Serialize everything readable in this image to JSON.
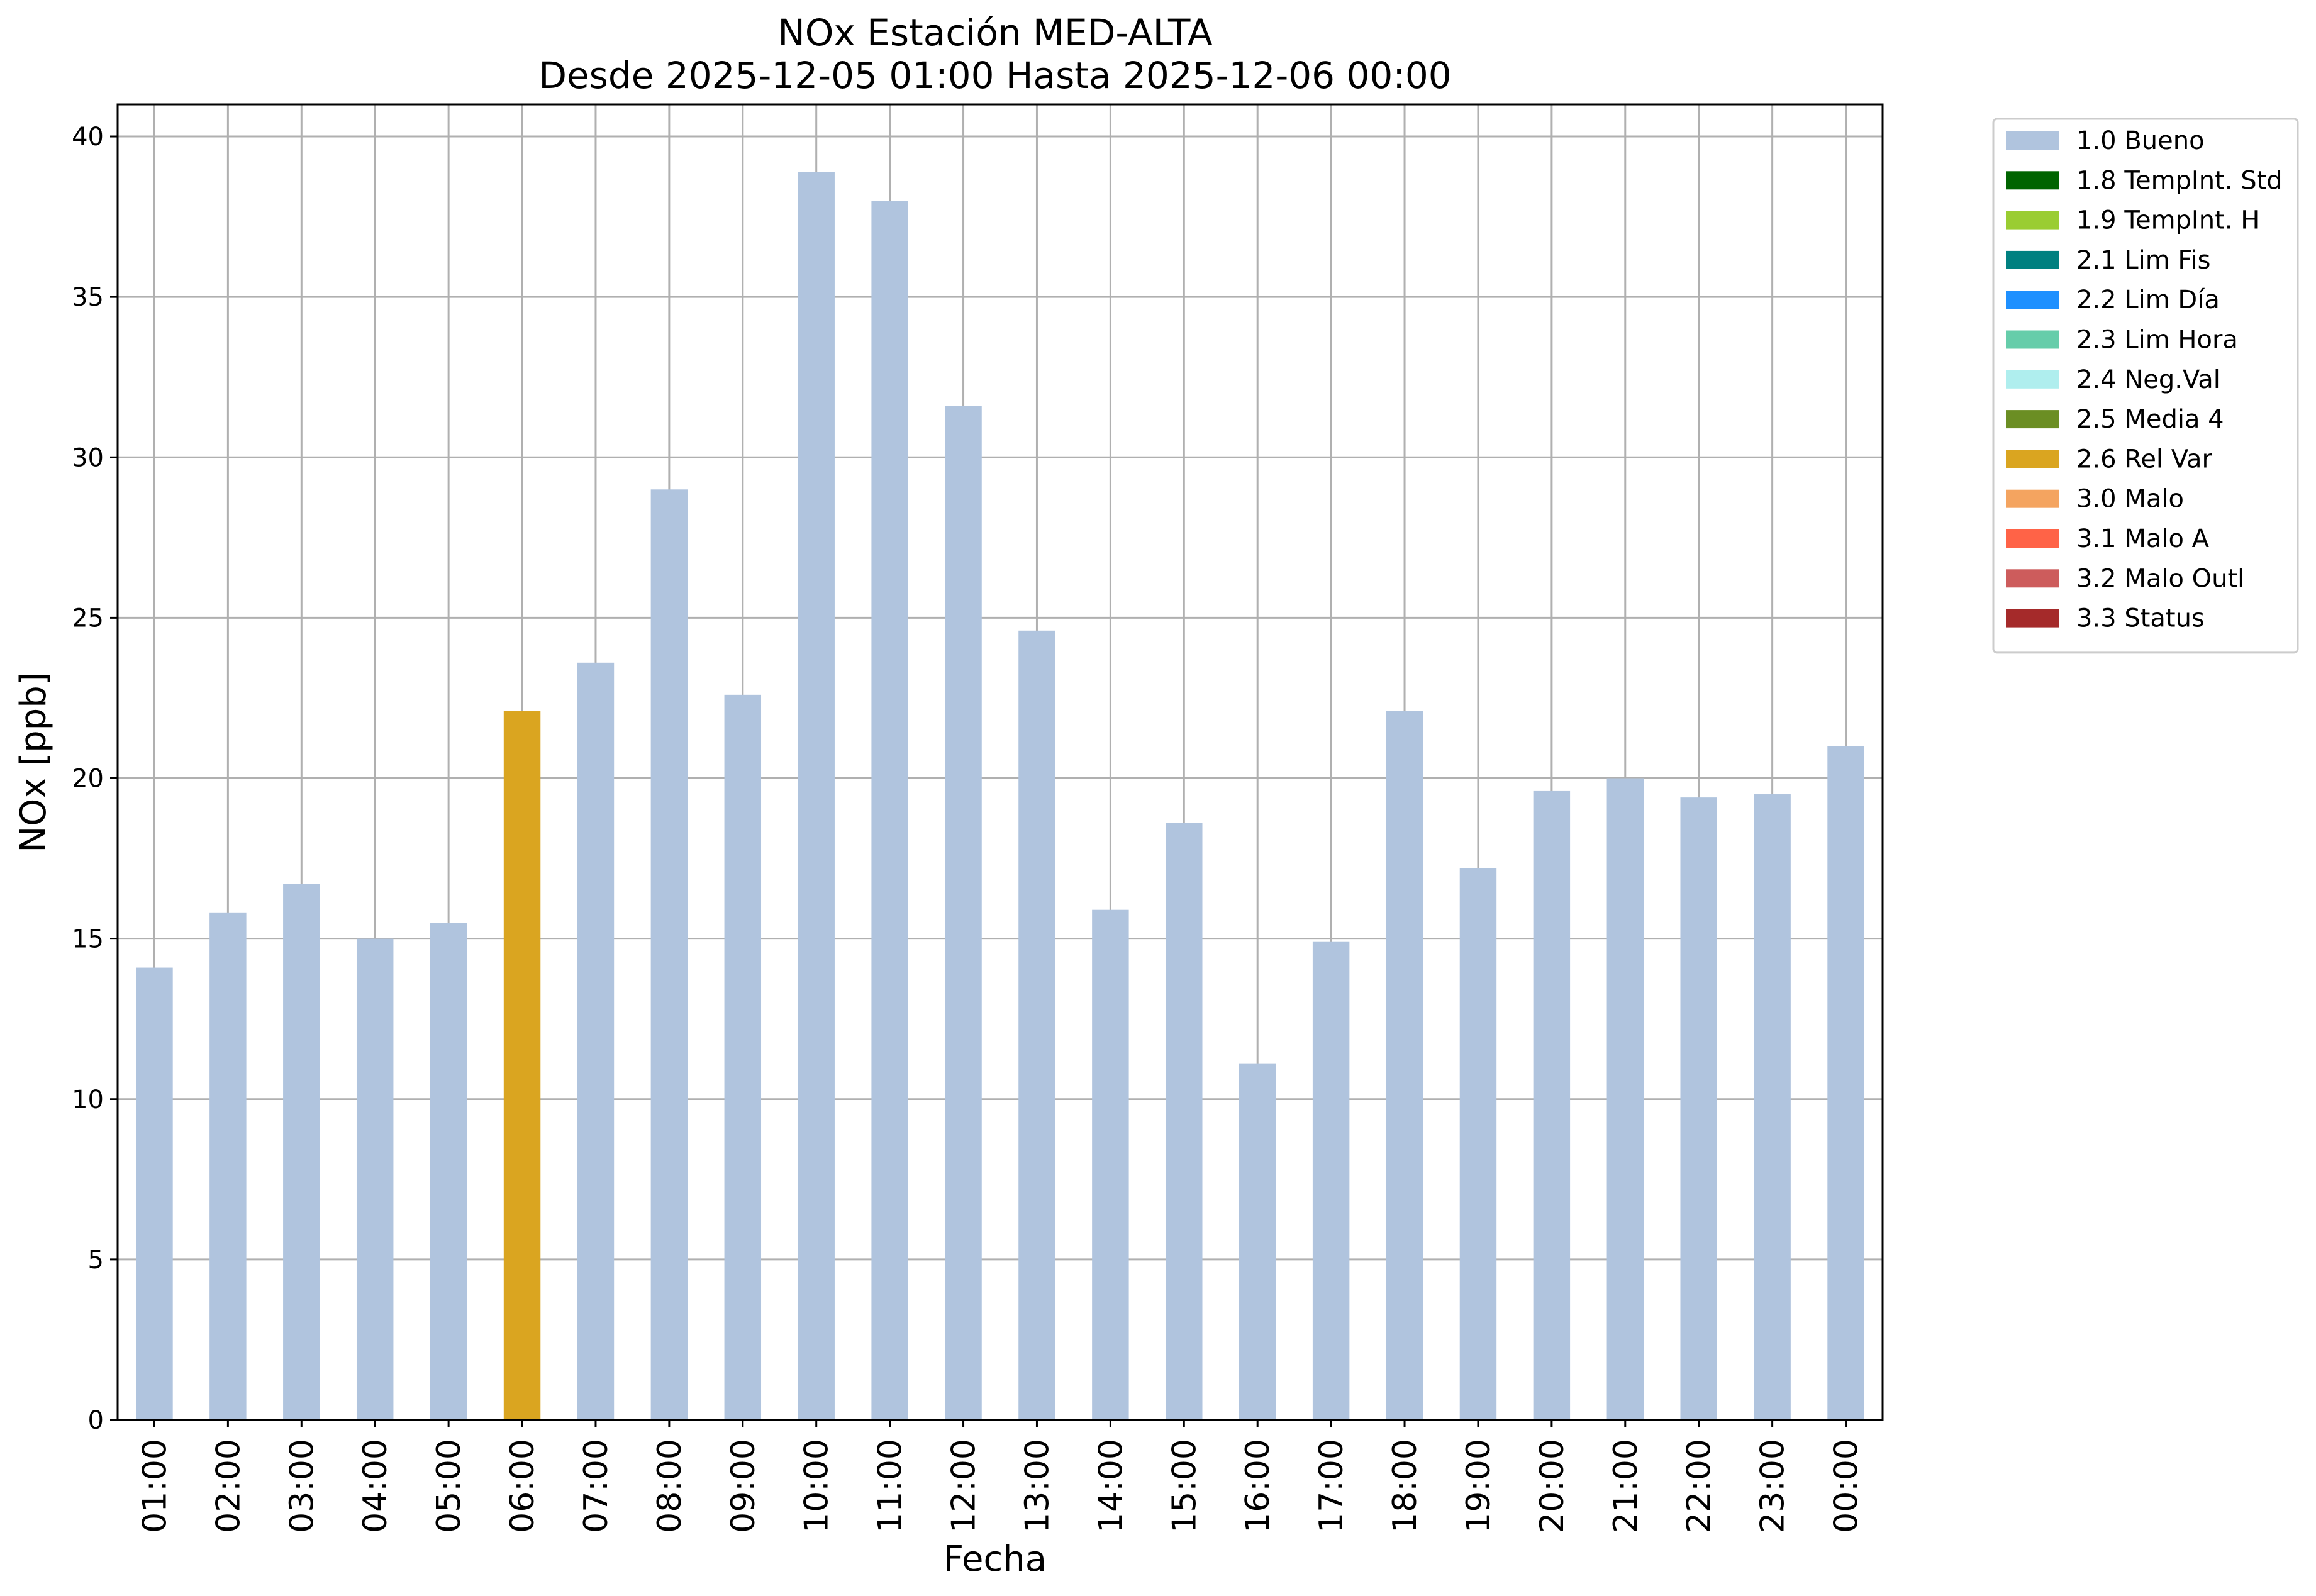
{
  "chart_data": {
    "type": "bar",
    "title": "NOx Estación MED-ALTA",
    "subtitle": "Desde 2025-12-05 01:00 Hasta 2025-12-06 00:00",
    "xlabel": "Fecha",
    "ylabel": "NOx [ppb]",
    "ylim": [
      0,
      41
    ],
    "yticks": [
      0,
      5,
      10,
      15,
      20,
      25,
      30,
      35,
      40
    ],
    "grid": true,
    "legend_position": "outside-right-top",
    "categories": [
      "01:00",
      "02:00",
      "03:00",
      "04:00",
      "05:00",
      "06:00",
      "07:00",
      "08:00",
      "09:00",
      "10:00",
      "11:00",
      "12:00",
      "13:00",
      "14:00",
      "15:00",
      "16:00",
      "17:00",
      "18:00",
      "19:00",
      "20:00",
      "21:00",
      "22:00",
      "23:00",
      "00:00"
    ],
    "values": [
      14.1,
      15.8,
      16.7,
      15.0,
      15.5,
      22.1,
      23.6,
      29.0,
      22.6,
      38.9,
      38.0,
      31.6,
      24.6,
      15.9,
      18.6,
      11.1,
      14.9,
      22.1,
      17.2,
      19.6,
      20.0,
      19.4,
      19.5,
      21.0
    ],
    "flags": [
      "1.0 Bueno",
      "1.0 Bueno",
      "1.0 Bueno",
      "1.0 Bueno",
      "1.0 Bueno",
      "2.6 Rel Var",
      "1.0 Bueno",
      "1.0 Bueno",
      "1.0 Bueno",
      "1.0 Bueno",
      "1.0 Bueno",
      "1.0 Bueno",
      "1.0 Bueno",
      "1.0 Bueno",
      "1.0 Bueno",
      "1.0 Bueno",
      "1.0 Bueno",
      "1.0 Bueno",
      "1.0 Bueno",
      "1.0 Bueno",
      "1.0 Bueno",
      "1.0 Bueno",
      "1.0 Bueno",
      "1.0 Bueno"
    ],
    "legend": [
      {
        "label": "1.0 Bueno",
        "color": "#b0c4de"
      },
      {
        "label": "1.8 TempInt. Std",
        "color": "#006400"
      },
      {
        "label": "1.9 TempInt. H",
        "color": "#9acd32"
      },
      {
        "label": "2.1 Lim Fis",
        "color": "#008080"
      },
      {
        "label": "2.2 Lim Día",
        "color": "#1e90ff"
      },
      {
        "label": "2.3 Lim Hora",
        "color": "#66cdaa"
      },
      {
        "label": "2.4 Neg.Val",
        "color": "#afeeee"
      },
      {
        "label": "2.5 Media 4",
        "color": "#6b8e23"
      },
      {
        "label": "2.6 Rel Var",
        "color": "#daa520"
      },
      {
        "label": "3.0 Malo",
        "color": "#f4a460"
      },
      {
        "label": "3.1 Malo A",
        "color": "#ff6347"
      },
      {
        "label": "3.2 Malo Outl",
        "color": "#cd5c5c"
      },
      {
        "label": "3.3 Status",
        "color": "#a52a2a"
      }
    ]
  }
}
